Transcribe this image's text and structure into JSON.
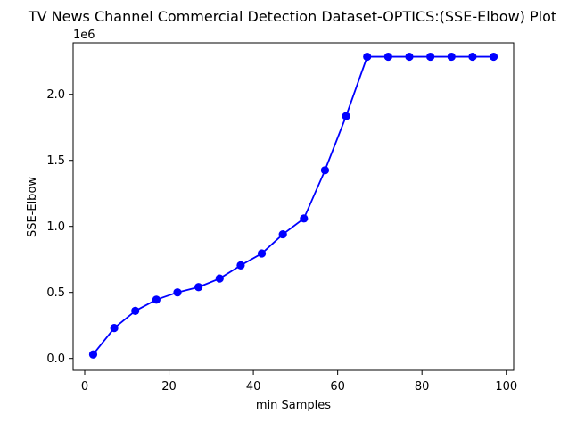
{
  "chart_data": {
    "type": "line",
    "title": "TV News Channel Commercial Detection Dataset-OPTICS:(SSE-Elbow) Plot",
    "xlabel": "min Samples",
    "ylabel": "SSE-Elbow",
    "y_offset_label": "1e6",
    "xlim": [
      -2.75,
      101.75
    ],
    "ylim": [
      -0.09,
      2.39
    ],
    "x_ticks": [
      0,
      20,
      40,
      60,
      80,
      100
    ],
    "x_tick_labels": [
      "0",
      "20",
      "40",
      "60",
      "80",
      "100"
    ],
    "y_ticks": [
      0.0,
      0.5,
      1.0,
      1.5,
      2.0
    ],
    "y_tick_labels": [
      "0.0",
      "0.5",
      "1.0",
      "1.5",
      "2.0"
    ],
    "grid": false,
    "series": [
      {
        "color": "#0000ff",
        "marker": "circle",
        "x": [
          2,
          7,
          12,
          17,
          22,
          27,
          32,
          37,
          42,
          47,
          52,
          57,
          62,
          67,
          72,
          77,
          82,
          87,
          92,
          97
        ],
        "y": [
          0.03,
          0.23,
          0.36,
          0.445,
          0.5,
          0.54,
          0.605,
          0.705,
          0.795,
          0.94,
          1.06,
          1.425,
          1.835,
          2.285,
          2.285,
          2.285,
          2.285,
          2.285,
          2.285,
          2.285
        ]
      }
    ]
  }
}
